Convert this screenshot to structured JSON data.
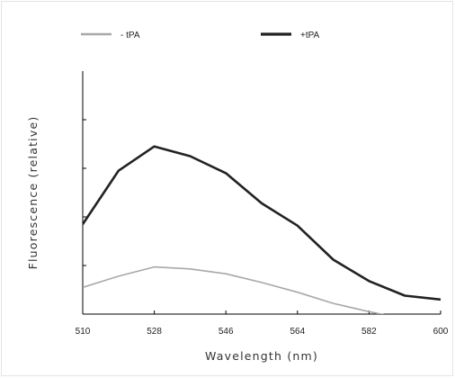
{
  "chart_data": {
    "type": "line",
    "xlabel": "Wavelength (nm)",
    "ylabel": "Fluorescence (relative)",
    "xlim": [
      510,
      600
    ],
    "xticks": [
      "510",
      "528",
      "546",
      "564",
      "582",
      "600"
    ],
    "ylim": [
      0,
      5
    ],
    "yticks": [
      1,
      2,
      3,
      4
    ],
    "legend_position": "top",
    "series": [
      {
        "name": "- tPA",
        "color": "#a8a8a8",
        "x": [
          510,
          519,
          528,
          537,
          546,
          555,
          564,
          573,
          582,
          591,
          600
        ],
        "values": [
          0.55,
          0.78,
          0.97,
          0.93,
          0.83,
          0.65,
          0.45,
          0.22,
          0.05,
          -0.1,
          -0.15
        ]
      },
      {
        "name": "+tPA",
        "color": "#222222",
        "x": [
          510,
          519,
          528,
          537,
          546,
          555,
          564,
          573,
          582,
          591,
          600
        ],
        "values": [
          1.85,
          2.95,
          3.45,
          3.25,
          2.9,
          2.28,
          1.82,
          1.12,
          0.68,
          0.38,
          0.3
        ]
      }
    ]
  }
}
